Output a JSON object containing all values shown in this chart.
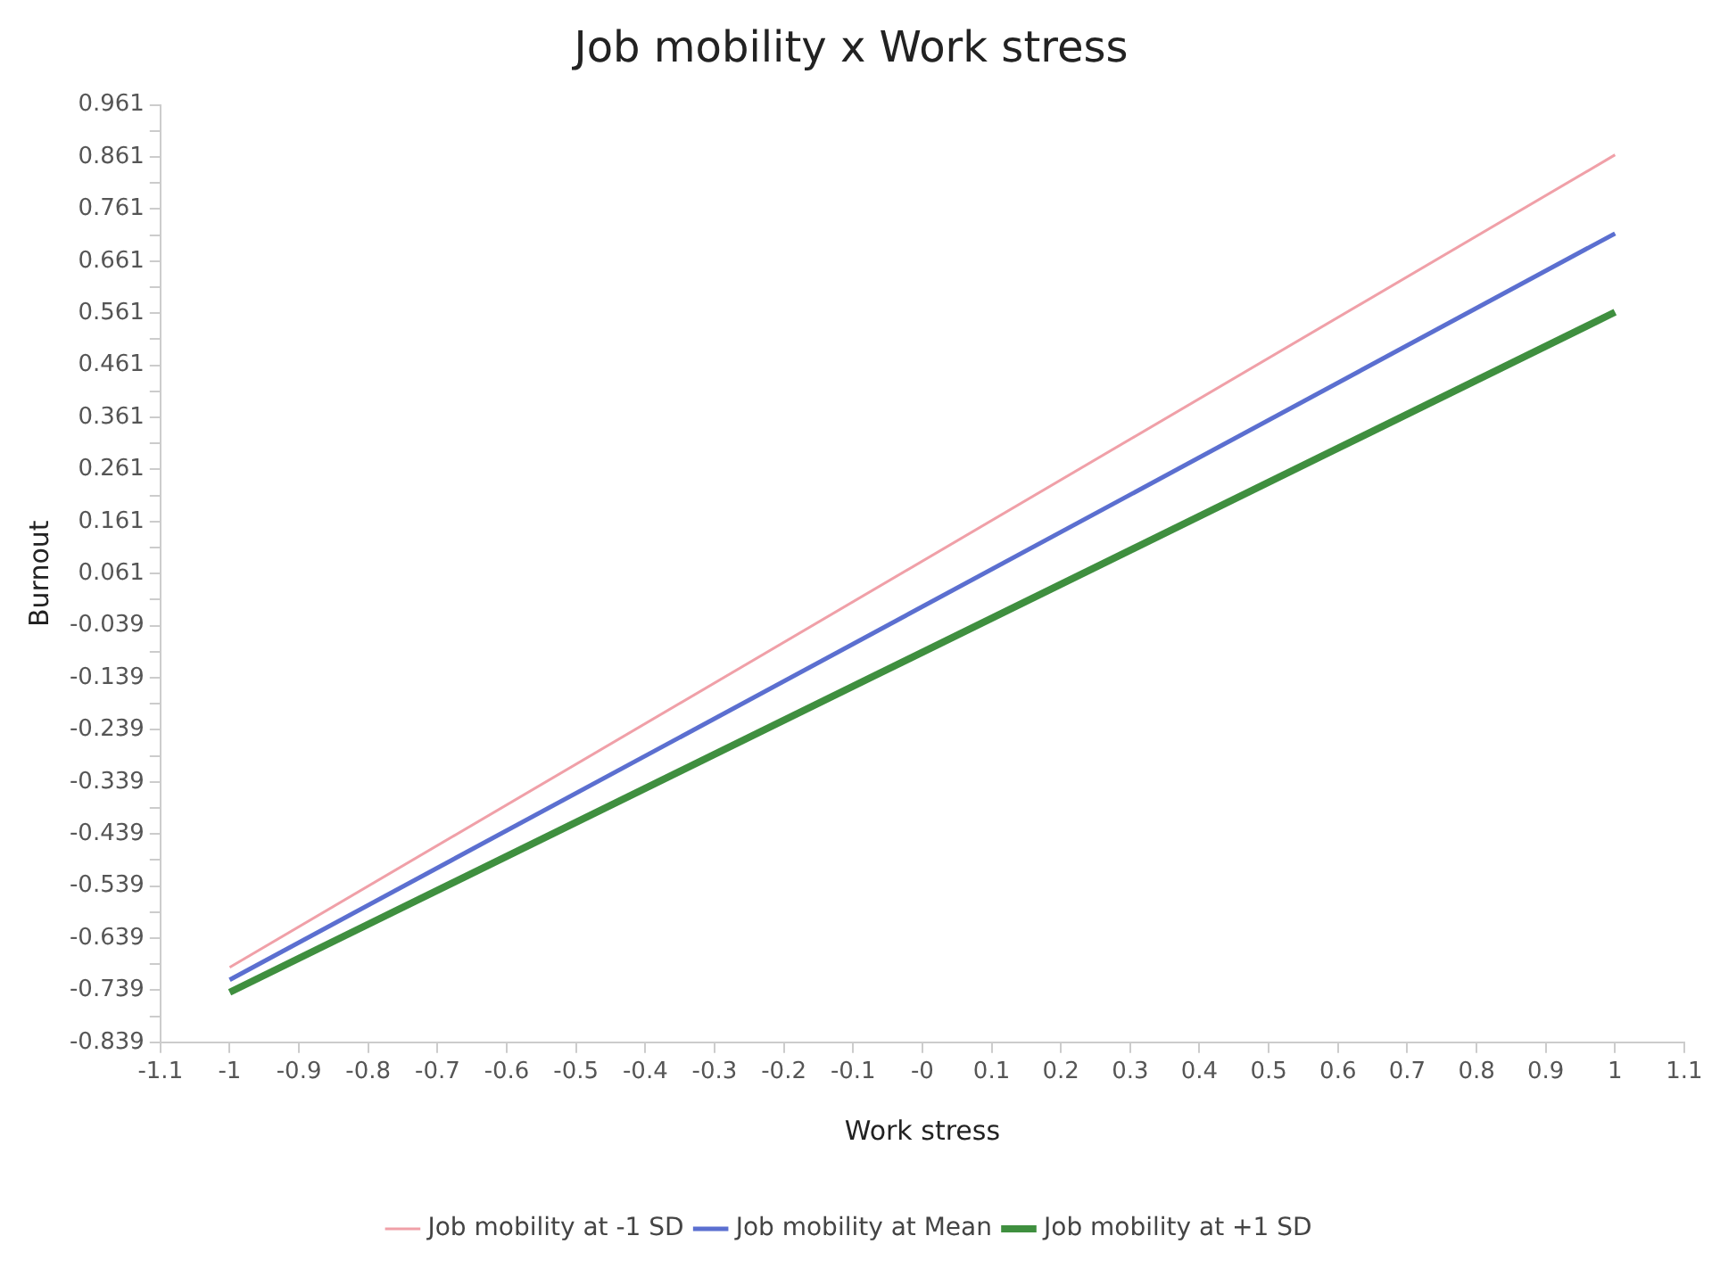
{
  "chart_data": {
    "type": "line",
    "title": "Job mobility x Work stress",
    "xlabel": "Work stress",
    "ylabel": "Burnout",
    "x": [
      -1,
      1
    ],
    "series": [
      {
        "name": "Job mobility at -1 SD",
        "color": "#f0a0a8",
        "values": [
          -0.695,
          0.865
        ]
      },
      {
        "name": "Job mobility at Mean",
        "color": "#5b6fd0",
        "values": [
          -0.719,
          0.714
        ]
      },
      {
        "name": "Job mobility at +1 SD",
        "color": "#3f8f3f",
        "values": [
          -0.743,
          0.563
        ]
      }
    ],
    "xlim": [
      -1.1,
      1.1
    ],
    "xticks": [
      -1.1,
      -1,
      -0.9,
      -0.8,
      -0.7,
      -0.6,
      -0.5,
      -0.4,
      -0.3,
      -0.2,
      -0.1,
      {
        "value": 0,
        "label": "-0"
      },
      0.1,
      0.2,
      0.3,
      0.4,
      0.5,
      0.6,
      0.7,
      0.8,
      0.9,
      1,
      1.1
    ],
    "ylim": [
      -0.839,
      0.961
    ],
    "yticks": [
      0.961,
      {
        "value": 0.911,
        "label": null
      },
      0.861,
      {
        "value": 0.811,
        "label": null
      },
      0.761,
      {
        "value": 0.711,
        "label": null
      },
      0.661,
      {
        "value": 0.611,
        "label": null
      },
      0.561,
      {
        "value": 0.511,
        "label": null
      },
      0.461,
      {
        "value": 0.411,
        "label": null
      },
      0.361,
      {
        "value": 0.311,
        "label": null
      },
      0.261,
      {
        "value": 0.211,
        "label": null
      },
      0.161,
      {
        "value": 0.111,
        "label": null
      },
      0.061,
      {
        "value": 0.011,
        "label": null
      },
      -0.039,
      {
        "value": -0.089,
        "label": null
      },
      -0.139,
      {
        "value": -0.189,
        "label": null
      },
      -0.239,
      {
        "value": -0.289,
        "label": null
      },
      -0.339,
      {
        "value": -0.389,
        "label": null
      },
      -0.439,
      {
        "value": -0.489,
        "label": null
      },
      -0.539,
      {
        "value": -0.589,
        "label": null
      },
      -0.639,
      {
        "value": -0.689,
        "label": null
      },
      -0.739,
      {
        "value": -0.789,
        "label": null
      },
      -0.839
    ],
    "grid": false,
    "legend": "bottom",
    "marker": "none",
    "line_style": "solid"
  }
}
